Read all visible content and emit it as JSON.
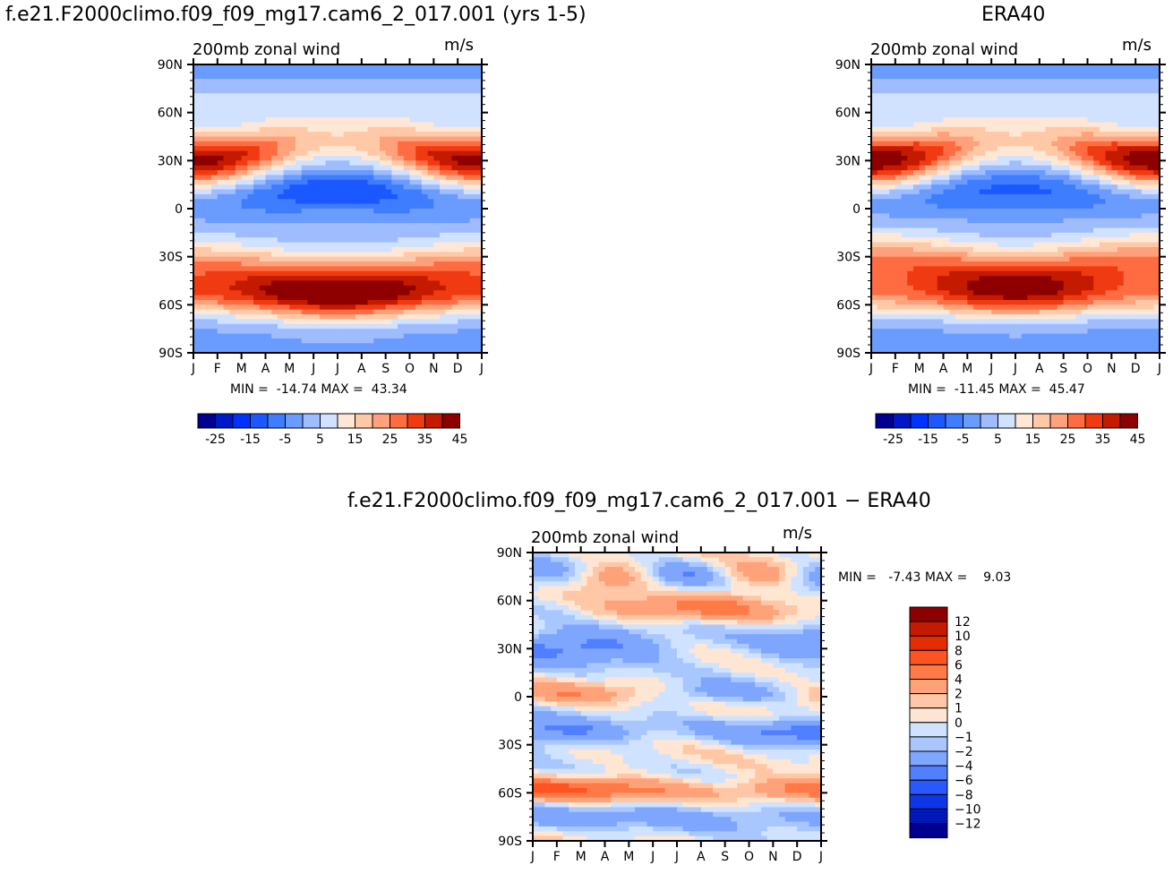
{
  "chart_data": [
    {
      "type": "heatmap",
      "title": "f.e21.F2000climo.f09_f09_mg17.cam6_2_017.001 (yrs 1-5)",
      "subtitle": "200mb zonal wind",
      "units": "m/s",
      "x_ticks": [
        "J",
        "F",
        "M",
        "A",
        "M",
        "J",
        "J",
        "A",
        "S",
        "O",
        "N",
        "D",
        "J"
      ],
      "y_ticks": [
        "90N",
        "60N",
        "30N",
        "0",
        "30S",
        "60S",
        "90S"
      ],
      "ylim": [
        -90,
        90
      ],
      "min_label": "MIN =  -14.74 MAX =  43.34",
      "colorbar_labels": [
        "-25",
        "-15",
        "-5",
        "5",
        "15",
        "25",
        "35",
        "45"
      ],
      "jet_north": {
        "lat": 30,
        "peak": 43,
        "boreal_summer": 15
      },
      "jet_south": {
        "lat": -45,
        "peak": 35
      },
      "tropical_min": -14.74
    },
    {
      "type": "heatmap",
      "title": "ERA40",
      "subtitle": "200mb zonal wind",
      "units": "m/s",
      "x_ticks": [
        "J",
        "F",
        "M",
        "A",
        "M",
        "J",
        "J",
        "A",
        "S",
        "O",
        "N",
        "D",
        "J"
      ],
      "y_ticks": [
        "90N",
        "60N",
        "30N",
        "0",
        "30S",
        "60S",
        "90S"
      ],
      "ylim": [
        -90,
        90
      ],
      "min_label": "MIN =  -11.45 MAX =  45.47",
      "colorbar_labels": [
        "-25",
        "-15",
        "-5",
        "5",
        "15",
        "25",
        "35",
        "45"
      ],
      "jet_north": {
        "lat": 30,
        "peak": 45,
        "boreal_summer": 15
      },
      "jet_south": {
        "lat": -40,
        "peak": 35
      },
      "tropical_min": -11.45
    },
    {
      "type": "heatmap",
      "title": "f.e21.F2000climo.f09_f09_mg17.cam6_2_017.001 − ERA40",
      "subtitle": "200mb zonal wind",
      "units": "m/s",
      "x_ticks": [
        "J",
        "F",
        "M",
        "A",
        "M",
        "J",
        "J",
        "A",
        "S",
        "O",
        "N",
        "D",
        "J"
      ],
      "y_ticks": [
        "90N",
        "60N",
        "30N",
        "0",
        "30S",
        "60S",
        "90S"
      ],
      "ylim": [
        -90,
        90
      ],
      "min_label": "MIN =   -7.43 MAX =    9.03",
      "colorbar_labels": [
        "12",
        "10",
        "8",
        "6",
        "4",
        "2",
        "1",
        "0",
        "−1",
        "−2",
        "−4",
        "−6",
        "−8",
        "−10",
        "−12"
      ]
    }
  ],
  "colors": {
    "seq": [
      "#000090",
      "#0019c8",
      "#0032ff",
      "#1c58ff",
      "#3f7dff",
      "#6a9cff",
      "#9fbcff",
      "#d0e2ff",
      "#ffe7d6",
      "#ffc9a8",
      "#ffa17a",
      "#ff6c42",
      "#f03a12",
      "#c41a00",
      "#8e0000"
    ],
    "diff": [
      "#8e0000",
      "#c41a00",
      "#e22e02",
      "#ff5322",
      "#ff7a47",
      "#ffa279",
      "#ffc7a6",
      "#fee6d2",
      "#cfe2ff",
      "#a8c6ff",
      "#7ea6ff",
      "#507fff",
      "#2a58ff",
      "#0c36e8",
      "#0018b8",
      "#000090"
    ]
  }
}
